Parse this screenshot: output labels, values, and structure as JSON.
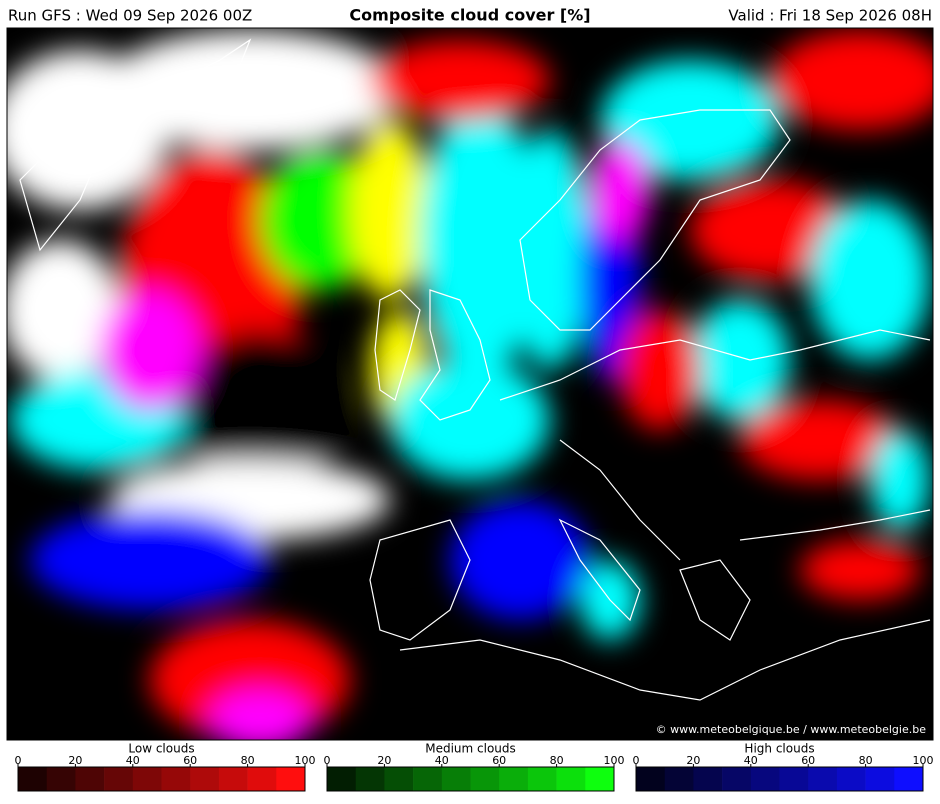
{
  "header": {
    "run": "Run GFS : Wed 09 Sep 2026 00Z",
    "title": "Composite cloud cover [%]",
    "valid": "Valid : Fri 18 Sep 2026 08H"
  },
  "map": {
    "credit": "© www.meteobelgique.be / www.meteobelgie.be"
  },
  "colorbars": [
    {
      "title": "Low clouds",
      "lim": [
        0,
        100
      ],
      "ticks": [
        0,
        20,
        40,
        60,
        80,
        100
      ],
      "colors": [
        "#1e0202",
        "#360404",
        "#4e0505",
        "#660606",
        "#7e0707",
        "#960808",
        "#ae0a0a",
        "#c60b0b",
        "#e00c0c",
        "#ff0e0e"
      ]
    },
    {
      "title": "Medium clouds",
      "lim": [
        0,
        100
      ],
      "ticks": [
        0,
        20,
        40,
        60,
        80,
        100
      ],
      "colors": [
        "#021e02",
        "#043604",
        "#054e05",
        "#066606",
        "#077e07",
        "#089608",
        "#0aae0a",
        "#0bc60b",
        "#0ce00c",
        "#0eff0e"
      ]
    },
    {
      "title": "High clouds",
      "lim": [
        0,
        100
      ],
      "ticks": [
        0,
        20,
        40,
        60,
        80,
        100
      ],
      "colors": [
        "#02021e",
        "#040436",
        "#05054e",
        "#060666",
        "#07077e",
        "#080896",
        "#0a0aae",
        "#0b0bc6",
        "#0c0ce0",
        "#0e0eff"
      ]
    }
  ]
}
